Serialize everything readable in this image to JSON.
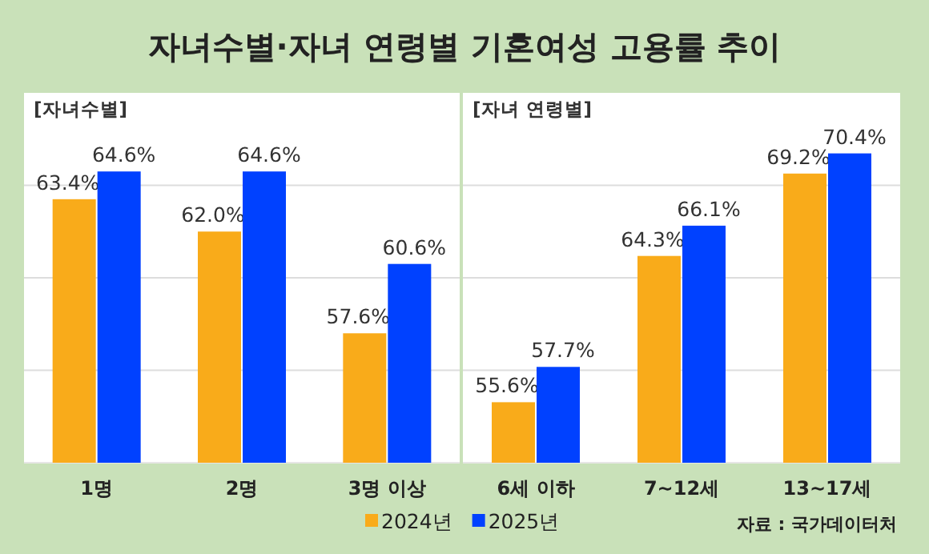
{
  "chart_data": [
    {
      "type": "bar",
      "title": "자녀수별·자녀 연령별 기혼여성 고용률 추이",
      "subtitle": "[자녀수별]",
      "categories": [
        "1명",
        "2명",
        "3명 이상"
      ],
      "ylim": [
        52,
        68
      ],
      "yticks": [
        {
          "value": 56,
          "label": null
        },
        {
          "value": 60,
          "label": null
        },
        {
          "value": 64,
          "label": null
        }
      ],
      "grid": "y",
      "legend": false,
      "series": [
        {
          "color": "#f9ab1a",
          "values": [
            63.4,
            62.0,
            57.6
          ],
          "value_labels": [
            "63.4%",
            "62.0%",
            "57.6%"
          ]
        },
        {
          "color": "#0041ff",
          "values": [
            64.6,
            64.6,
            60.6
          ],
          "value_labels": [
            "64.6%",
            "64.6%",
            "60.6%"
          ]
        }
      ]
    },
    {
      "type": "bar",
      "subtitle": "[자녀 연령별]",
      "categories": [
        "6세 이하",
        "7~12세",
        "13~17세"
      ],
      "ylim": [
        52,
        74
      ],
      "yticks": [
        {
          "value": 57.5,
          "label": null
        },
        {
          "value": 63,
          "label": null
        },
        {
          "value": 68.5,
          "label": null
        }
      ],
      "grid": "y",
      "legend": "bottom",
      "annotations": [
        "자료 : 국가데이터처"
      ],
      "series": [
        {
          "name": "2024년",
          "color": "#f9ab1a",
          "values": [
            55.6,
            64.3,
            69.2
          ],
          "value_labels": [
            "55.6%",
            "64.3%",
            "69.2%"
          ]
        },
        {
          "name": "2025년",
          "color": "#0041ff",
          "values": [
            57.7,
            66.1,
            70.4
          ],
          "value_labels": [
            "57.7%",
            "66.1%",
            "70.4%"
          ]
        }
      ]
    }
  ]
}
